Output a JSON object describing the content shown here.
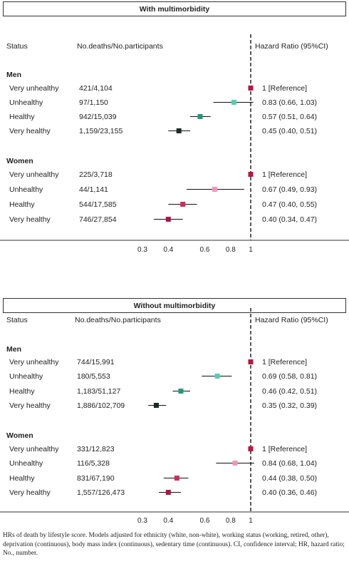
{
  "chart_data": [
    {
      "type": "forest",
      "title": "With multimorbidity",
      "columns": {
        "status": "Status",
        "deaths": "No.deaths/No.participants",
        "hr": "Hazard Ratio (95%CI)"
      },
      "x_scale": "log",
      "xlim": [
        0.3,
        1.05
      ],
      "x_ticks": [
        0.3,
        0.4,
        0.6,
        0.8,
        1
      ],
      "x_tick_labels": [
        "0.3",
        "0.4",
        "0.6",
        "0.8",
        "1"
      ],
      "reference_line": 1,
      "groups": [
        {
          "name": "Men",
          "rows": [
            {
              "status": "Very unhealthy",
              "deaths": "421/4,104",
              "hr": 1,
              "lo": 1,
              "hi": 1,
              "hr_text": "1 [Reference]",
              "color": "#b5183f"
            },
            {
              "status": "Unhealthy",
              "deaths": "97/1,150",
              "hr": 0.83,
              "lo": 0.66,
              "hi": 1.03,
              "hr_text": "0.83 (0.66, 1.03)",
              "color": "#4fcfb6"
            },
            {
              "status": "Healthy",
              "deaths": "942/15,039",
              "hr": 0.57,
              "lo": 0.51,
              "hi": 0.64,
              "hr_text": "0.57 (0.51, 0.64)",
              "color": "#23977a"
            },
            {
              "status": "Very healthy",
              "deaths": "1,159/23,155",
              "hr": 0.45,
              "lo": 0.4,
              "hi": 0.51,
              "hr_text": "0.45 (0.40, 0.51)",
              "color": "#1b2b24"
            }
          ]
        },
        {
          "name": "Women",
          "rows": [
            {
              "status": "Very unhealthy",
              "deaths": "225/3,718",
              "hr": 1,
              "lo": 1,
              "hi": 1,
              "hr_text": "1 [Reference]",
              "color": "#b5183f"
            },
            {
              "status": "Unhealthy",
              "deaths": "44/1,141",
              "hr": 0.67,
              "lo": 0.49,
              "hi": 0.93,
              "hr_text": "0.67 (0.49, 0.93)",
              "color": "#ef96b8"
            },
            {
              "status": "Healthy",
              "deaths": "544/17,585",
              "hr": 0.47,
              "lo": 0.4,
              "hi": 0.55,
              "hr_text": "0.47 (0.40, 0.55)",
              "color": "#d02a5f"
            },
            {
              "status": "Very healthy",
              "deaths": "746/27,854",
              "hr": 0.4,
              "lo": 0.34,
              "hi": 0.47,
              "hr_text": "0.40 (0.34, 0.47)",
              "color": "#a81846"
            }
          ]
        }
      ]
    },
    {
      "type": "forest",
      "title": "Without multimorbidity",
      "columns": {
        "status": "Status",
        "deaths": "No.deaths/No.participants",
        "hr": "Hazard Ratio (95%CI)"
      },
      "x_scale": "log",
      "xlim": [
        0.3,
        1.05
      ],
      "x_ticks": [
        0.3,
        0.4,
        0.6,
        0.8,
        1
      ],
      "x_tick_labels": [
        "0.3",
        "0.4",
        "0.6",
        "0.8",
        "1"
      ],
      "reference_line": 1,
      "groups": [
        {
          "name": "Men",
          "rows": [
            {
              "status": "Very unhealthy",
              "deaths": "744/15,991",
              "hr": 1,
              "lo": 1,
              "hi": 1,
              "hr_text": "1 [Reference]",
              "color": "#b5183f"
            },
            {
              "status": "Unhealthy",
              "deaths": "180/5,553",
              "hr": 0.69,
              "lo": 0.58,
              "hi": 0.81,
              "hr_text": "0.69 (0.58, 0.81)",
              "color": "#4fcfb6"
            },
            {
              "status": "Healthy",
              "deaths": "1,183/51,127",
              "hr": 0.46,
              "lo": 0.42,
              "hi": 0.51,
              "hr_text": "0.46 (0.42, 0.51)",
              "color": "#23977a"
            },
            {
              "status": "Very healthy",
              "deaths": "1,886/102,709",
              "hr": 0.35,
              "lo": 0.32,
              "hi": 0.39,
              "hr_text": "0.35 (0.32, 0.39)",
              "color": "#1b2b24"
            }
          ]
        },
        {
          "name": "Women",
          "rows": [
            {
              "status": "Very unhealthy",
              "deaths": "331/12,823",
              "hr": 1,
              "lo": 1,
              "hi": 1,
              "hr_text": "1 [Reference]",
              "color": "#b5183f"
            },
            {
              "status": "Unhealthy",
              "deaths": "116/5,328",
              "hr": 0.84,
              "lo": 0.68,
              "hi": 1.04,
              "hr_text": "0.84 (0.68, 1.04)",
              "color": "#ef96b8"
            },
            {
              "status": "Healthy",
              "deaths": "831/67,190",
              "hr": 0.44,
              "lo": 0.38,
              "hi": 0.5,
              "hr_text": "0.44 (0.38, 0.50)",
              "color": "#d02a5f"
            },
            {
              "status": "Very healthy",
              "deaths": "1,557/126,473",
              "hr": 0.4,
              "lo": 0.36,
              "hi": 0.46,
              "hr_text": "0.40 (0.36, 0.46)",
              "color": "#a81846"
            }
          ]
        }
      ]
    }
  ],
  "footnote": "HRs of death by lifestyle score. Models adjusted for ethnicity (white, non-white), working status (working, retired, other), deprivation (continuous), body mass index (continuous), sedentary time (continuous). CI, confidence interval; HR, hazard ratio; No., number."
}
